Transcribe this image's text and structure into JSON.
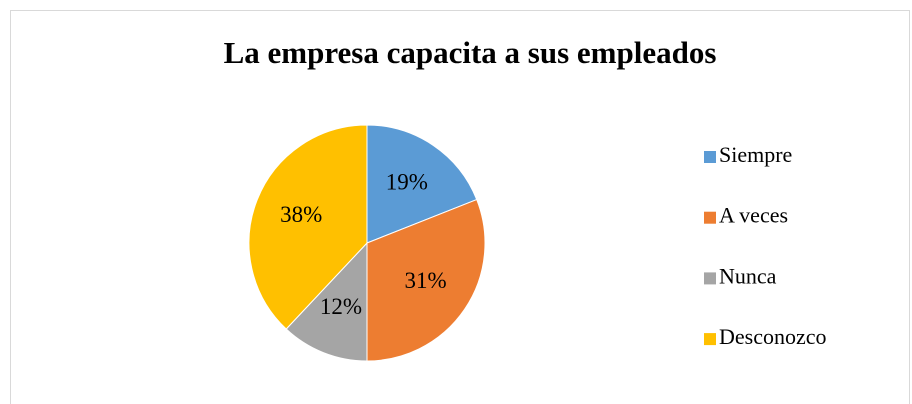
{
  "chart_data": {
    "type": "pie",
    "title": "La empresa capacita a sus empleados",
    "categories": [
      "Siempre",
      "A veces",
      "Nunca",
      "Desconozco"
    ],
    "values": [
      19,
      31,
      12,
      38
    ],
    "value_labels": [
      "19%",
      "31%",
      "12%",
      "38%"
    ],
    "colors": [
      "#5b9bd5",
      "#ed7d31",
      "#a5a5a5",
      "#ffc000"
    ],
    "legend": "right"
  }
}
